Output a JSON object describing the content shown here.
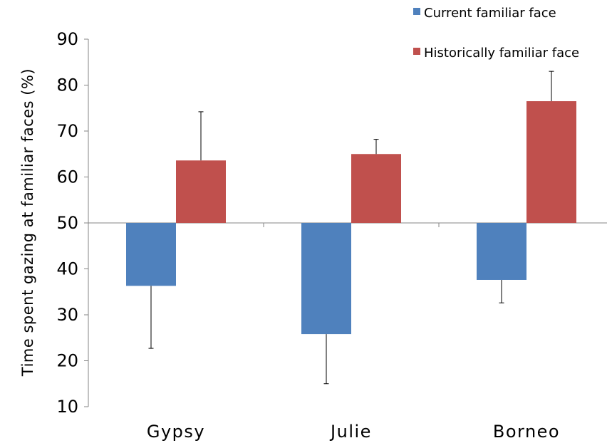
{
  "chart_data": {
    "type": "bar",
    "ylabel": "Time spent gazing at familiar faces (%)",
    "xlabel": "",
    "ylim": [
      10,
      90
    ],
    "yticks": [
      10,
      20,
      30,
      40,
      50,
      60,
      70,
      80,
      90
    ],
    "baseline": 50,
    "categories": [
      "Gypsy",
      "Julie",
      "Borneo"
    ],
    "legend_position": "top-right",
    "series": [
      {
        "name": "Current familiar face",
        "color": "#4f81bd",
        "values": [
          36.3,
          25.8,
          37.6
        ],
        "error": [
          13.6,
          10.8,
          5.0
        ]
      },
      {
        "name": "Historically familiar face",
        "color": "#c0504d",
        "values": [
          63.6,
          65.0,
          76.5
        ],
        "error": [
          10.6,
          3.2,
          6.5
        ]
      }
    ]
  }
}
